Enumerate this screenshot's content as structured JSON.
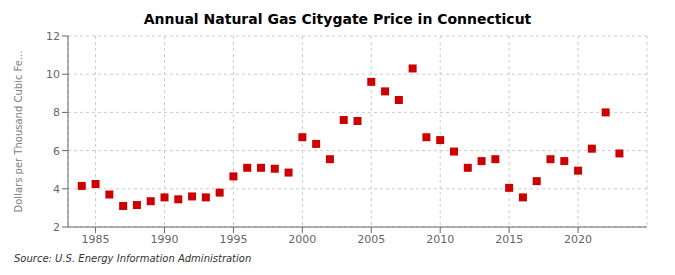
{
  "chart_data": {
    "type": "scatter",
    "title": "Annual Natural Gas Citygate Price in Connecticut",
    "ylabel": "Dollars per Thousand Cubic Fe...",
    "annotations": [
      "Source: U.S. Energy Information Administration"
    ],
    "x": [
      1984,
      1985,
      1986,
      1987,
      1988,
      1989,
      1990,
      1991,
      1992,
      1993,
      1994,
      1995,
      1996,
      1997,
      1998,
      1999,
      2000,
      2001,
      2002,
      2003,
      2004,
      2005,
      2006,
      2007,
      2008,
      2009,
      2010,
      2011,
      2012,
      2013,
      2014,
      2015,
      2016,
      2017,
      2018,
      2019,
      2020,
      2021,
      2022,
      2023
    ],
    "values": [
      4.15,
      4.25,
      3.7,
      3.1,
      3.15,
      3.35,
      3.55,
      3.45,
      3.6,
      3.55,
      3.8,
      4.65,
      5.1,
      5.1,
      5.05,
      4.85,
      6.7,
      6.35,
      5.55,
      7.6,
      7.55,
      9.6,
      9.1,
      8.65,
      10.3,
      6.7,
      6.55,
      5.95,
      5.1,
      5.45,
      5.55,
      4.05,
      3.55,
      4.4,
      5.55,
      5.45,
      4.95,
      6.1,
      8.0,
      5.85
    ],
    "color": "#cc0000",
    "marker": "square",
    "xlim": [
      1983.0,
      2025.0
    ],
    "xticks": [
      1985,
      1990,
      1995,
      2000,
      2005,
      2010,
      2015,
      2020
    ],
    "ylim": [
      2,
      12
    ],
    "yticks": [
      2,
      4,
      6,
      8,
      10,
      12
    ],
    "grid": true
  }
}
